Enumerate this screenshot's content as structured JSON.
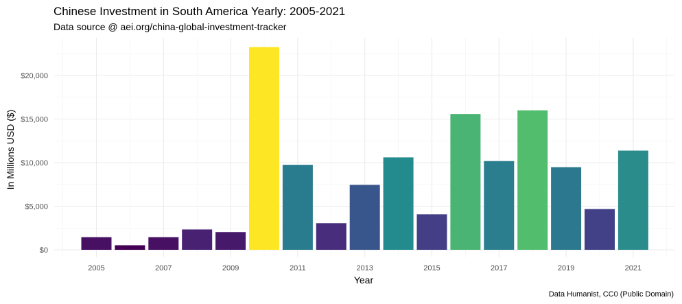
{
  "chart_data": {
    "type": "bar",
    "title": "Chinese Investment in South America Yearly: 2005-2021",
    "subtitle": "Data source @ aei.org/china-global-investment-tracker",
    "caption": "Data Humanist, CC0 (Public Domain)",
    "xlabel": "Year",
    "ylabel": "In Millions USD ($)",
    "categories": [
      2005,
      2006,
      2007,
      2008,
      2009,
      2010,
      2011,
      2012,
      2013,
      2014,
      2015,
      2016,
      2017,
      2018,
      2019,
      2020,
      2021
    ],
    "values": [
      1450,
      520,
      1450,
      2330,
      2030,
      23260,
      9750,
      3050,
      7450,
      10600,
      4070,
      15580,
      10180,
      16000,
      9480,
      4670,
      11380
    ],
    "x_tick_labels": [
      "2005",
      "2007",
      "2009",
      "2011",
      "2013",
      "2015",
      "2017",
      "2019",
      "2021"
    ],
    "y_ticks": [
      0,
      5000,
      10000,
      15000,
      20000
    ],
    "y_tick_labels": [
      "$0",
      "$5,000",
      "$10,000",
      "$15,000",
      "$20,000"
    ],
    "ylim": [
      0,
      24000
    ],
    "grid": true,
    "legend": "none",
    "color_scale": "viridis",
    "colors": [
      "#471063",
      "#440154",
      "#471063",
      "#482172",
      "#46196b",
      "#fde725",
      "#287c8e",
      "#472d7b",
      "#39568c",
      "#238a8d",
      "#433e85",
      "#4ab474",
      "#2b7e8e",
      "#52bd6d",
      "#2c788e",
      "#424086",
      "#2b8d8b"
    ]
  }
}
